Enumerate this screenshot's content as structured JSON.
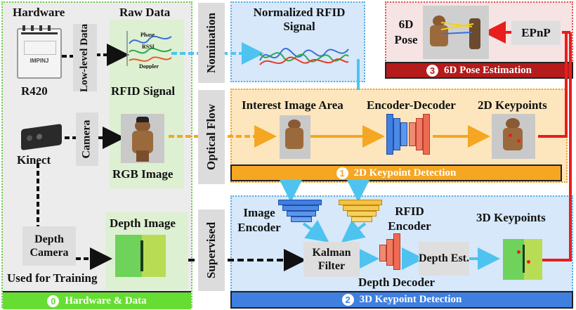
{
  "panels": {
    "hardware": {
      "title": "Hardware & Data",
      "num": "0"
    },
    "keypoint2d": {
      "title": "2D Keypoint Detection",
      "num": "1"
    },
    "keypoint3d": {
      "title": "3D Keypoint Detection",
      "num": "2"
    },
    "pose": {
      "title": "6D Pose Estimation",
      "num": "3"
    }
  },
  "hardware": {
    "heading": "Hardware",
    "raw_heading": "Raw Data",
    "reader_label": "R420",
    "reader_brand": "IMPINJ",
    "kinect_label": "Kinect",
    "low_level": "Low-level Data",
    "camera": "Camera",
    "rfid_signal": "RFID Signal",
    "rgb_image": "RGB Image",
    "depth_camera": "Depth Camera",
    "depth_image": "Depth Image",
    "used_for_training": "Used for Training",
    "wave_labels": [
      "Phase",
      "RSSI",
      "Doppler"
    ]
  },
  "transitions": {
    "nomination": "Nomination",
    "optical_flow": "Optical Flow",
    "supervised": "Supervised"
  },
  "signal": {
    "title": "Normalized RFID Signal"
  },
  "stage2d": {
    "interest": "Interest Image Area",
    "encdec": "Encoder-Decoder",
    "keypoints": "2D Keypoints"
  },
  "stage3d": {
    "image_encoder": "Image Encoder",
    "rfid_encoder": "RFID Encoder",
    "kalman": "Kalman Filter",
    "depth_decoder": "Depth Decoder",
    "depth_est": "Depth Est.",
    "keypoints": "3D Keypoints"
  },
  "pose": {
    "label": "6D Pose",
    "epnp": "EPnP"
  },
  "colors": {
    "green": "#66dd33",
    "orange": "#f5a623",
    "blue_banner": "#3f7fe0",
    "red_banner": "#b51b1b",
    "cyan_arrow": "#4ec3ef",
    "red_arrow": "#e81e1e"
  }
}
